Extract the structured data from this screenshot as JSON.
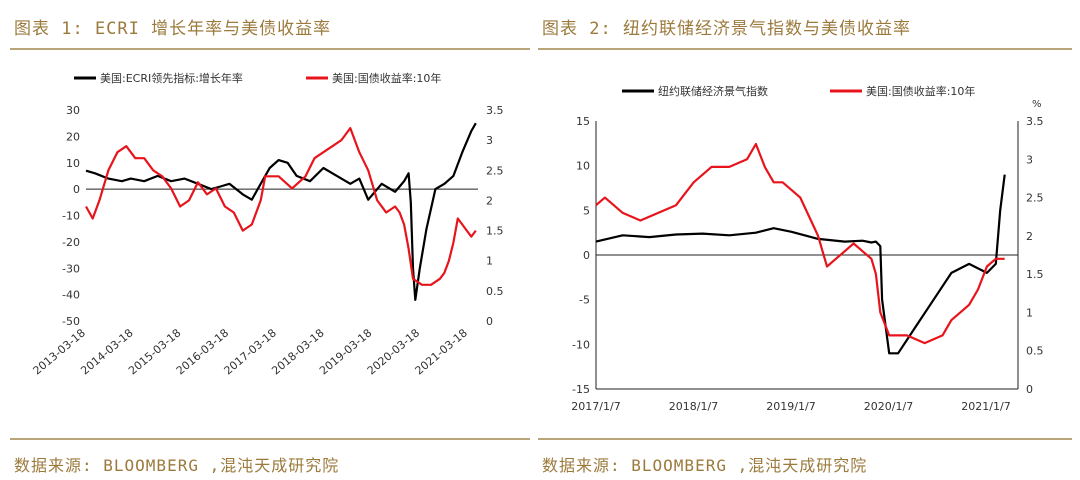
{
  "figures": [
    {
      "title": "图表 1: ECRI 增长年率与美债收益率",
      "source": "数据来源: BLOOMBERG ,混沌天成研究院",
      "legend": [
        "美国:ECRI领先指标:增长年率",
        "美国:国债收益率:10年"
      ]
    },
    {
      "title": "图表 2: 纽约联储经济景气指数与美债收益率",
      "source": "数据来源: BLOOMBERG ,混沌天成研究院",
      "legend": [
        "纽约联储经济景气指数",
        "美国:国债收益率:10年"
      ],
      "right_unit": "%"
    }
  ],
  "colors": {
    "black": "#000000",
    "red": "#e8141c",
    "gold": "#9b7a3c"
  },
  "chart_data": [
    {
      "type": "line",
      "title": "图表 1: ECRI 增长年率与美债收益率",
      "x_range": [
        2013.0,
        2021.75
      ],
      "x_ticks": [
        "2013-03-18",
        "2014-03-18",
        "2015-03-18",
        "2016-03-18",
        "2017-03-18",
        "2018-03-18",
        "2019-03-18",
        "2020-03-18",
        "2021-03-18"
      ],
      "y_left": {
        "range": [
          -50,
          30
        ],
        "ticks": [
          30,
          20,
          10,
          0,
          -10,
          -20,
          -30,
          -40,
          -50
        ]
      },
      "y_right": {
        "range": [
          0,
          3.5
        ],
        "ticks": [
          3.5,
          3,
          2.5,
          2,
          1.5,
          1,
          0.5,
          0
        ]
      },
      "series": [
        {
          "name": "美国:ECRI领先指标:增长年率",
          "axis": "left",
          "color": "#000000",
          "x": [
            2013.0,
            2013.2,
            2013.5,
            2013.8,
            2014.0,
            2014.3,
            2014.6,
            2014.9,
            2015.2,
            2015.5,
            2015.8,
            2016.0,
            2016.2,
            2016.5,
            2016.7,
            2016.9,
            2017.1,
            2017.3,
            2017.5,
            2017.7,
            2018.0,
            2018.3,
            2018.6,
            2018.9,
            2019.1,
            2019.3,
            2019.6,
            2019.9,
            2020.0,
            2020.1,
            2020.2,
            2020.25,
            2020.3,
            2020.35,
            2020.45,
            2020.6,
            2020.8,
            2021.0,
            2021.2,
            2021.4,
            2021.6,
            2021.7
          ],
          "values": [
            7,
            6,
            4,
            3,
            4,
            3,
            5,
            3,
            4,
            2,
            0,
            1,
            2,
            -2,
            -4,
            2,
            8,
            11,
            10,
            5,
            3,
            8,
            5,
            2,
            4,
            -4,
            2,
            -1,
            1,
            3,
            6,
            -5,
            -30,
            -42,
            -30,
            -15,
            0,
            2,
            5,
            14,
            22,
            25
          ]
        },
        {
          "name": "美国:国债收益率:10年",
          "axis": "right",
          "color": "#e8141c",
          "x": [
            2013.0,
            2013.15,
            2013.3,
            2013.5,
            2013.7,
            2013.9,
            2014.1,
            2014.3,
            2014.5,
            2014.7,
            2014.9,
            2015.1,
            2015.3,
            2015.5,
            2015.7,
            2015.9,
            2016.1,
            2016.3,
            2016.5,
            2016.7,
            2016.9,
            2017.0,
            2017.3,
            2017.6,
            2017.9,
            2018.1,
            2018.3,
            2018.5,
            2018.7,
            2018.9,
            2019.1,
            2019.3,
            2019.5,
            2019.7,
            2019.9,
            2020.0,
            2020.1,
            2020.2,
            2020.3,
            2020.5,
            2020.7,
            2020.9,
            2021.0,
            2021.1,
            2021.2,
            2021.3,
            2021.4,
            2021.5,
            2021.6,
            2021.7
          ],
          "values": [
            1.9,
            1.7,
            2.0,
            2.5,
            2.8,
            2.9,
            2.7,
            2.7,
            2.5,
            2.4,
            2.2,
            1.9,
            2.0,
            2.3,
            2.1,
            2.2,
            1.9,
            1.8,
            1.5,
            1.6,
            2.0,
            2.4,
            2.4,
            2.2,
            2.4,
            2.7,
            2.8,
            2.9,
            3.0,
            3.2,
            2.8,
            2.5,
            2.0,
            1.8,
            1.9,
            1.8,
            1.6,
            1.2,
            0.7,
            0.6,
            0.6,
            0.7,
            0.8,
            1.0,
            1.3,
            1.7,
            1.6,
            1.5,
            1.4,
            1.5
          ]
        }
      ]
    },
    {
      "type": "line",
      "title": "图表 2: 纽约联储经济景气指数与美债收益率",
      "x_range": [
        2017.0,
        2021.75
      ],
      "x_ticks": [
        "2017/1/7",
        "2018/1/7",
        "2019/1/7",
        "2020/1/7",
        "2021/1/7"
      ],
      "y_left": {
        "range": [
          -15,
          15
        ],
        "ticks": [
          15,
          10,
          5,
          0,
          -5,
          -10,
          -15
        ]
      },
      "y_right": {
        "range": [
          0,
          3.5
        ],
        "unit": "%",
        "ticks": [
          3.5,
          3,
          2.5,
          2,
          1.5,
          1,
          0.5,
          0
        ]
      },
      "series": [
        {
          "name": "纽约联储经济景气指数",
          "axis": "left",
          "color": "#000000",
          "x": [
            2017.0,
            2017.3,
            2017.6,
            2017.9,
            2018.2,
            2018.5,
            2018.8,
            2019.0,
            2019.2,
            2019.5,
            2019.8,
            2020.0,
            2020.1,
            2020.15,
            2020.2,
            2020.22,
            2020.3,
            2020.4,
            2020.6,
            2020.8,
            2021.0,
            2021.2,
            2021.4,
            2021.5,
            2021.55,
            2021.6
          ],
          "values": [
            1.5,
            2.2,
            2.0,
            2.3,
            2.4,
            2.2,
            2.5,
            3.0,
            2.6,
            1.8,
            1.5,
            1.6,
            1.4,
            1.5,
            1.0,
            -5,
            -11,
            -11,
            -8,
            -5,
            -2,
            -1,
            -2,
            -1,
            5,
            9
          ]
        },
        {
          "name": "美国:国债收益率:10年",
          "axis": "right",
          "color": "#e8141c",
          "x": [
            2017.0,
            2017.1,
            2017.2,
            2017.3,
            2017.5,
            2017.7,
            2017.9,
            2018.1,
            2018.3,
            2018.5,
            2018.7,
            2018.8,
            2018.9,
            2019.0,
            2019.1,
            2019.3,
            2019.5,
            2019.6,
            2019.7,
            2019.8,
            2019.9,
            2020.0,
            2020.1,
            2020.15,
            2020.2,
            2020.3,
            2020.5,
            2020.7,
            2020.9,
            2021.0,
            2021.1,
            2021.2,
            2021.3,
            2021.4,
            2021.5,
            2021.6
          ],
          "values": [
            2.4,
            2.5,
            2.4,
            2.3,
            2.2,
            2.3,
            2.4,
            2.7,
            2.9,
            2.9,
            3.0,
            3.2,
            2.9,
            2.7,
            2.7,
            2.5,
            2.0,
            1.6,
            1.7,
            1.8,
            1.9,
            1.8,
            1.7,
            1.5,
            1.0,
            0.7,
            0.7,
            0.6,
            0.7,
            0.9,
            1.0,
            1.1,
            1.3,
            1.6,
            1.7,
            1.7
          ]
        }
      ]
    }
  ]
}
